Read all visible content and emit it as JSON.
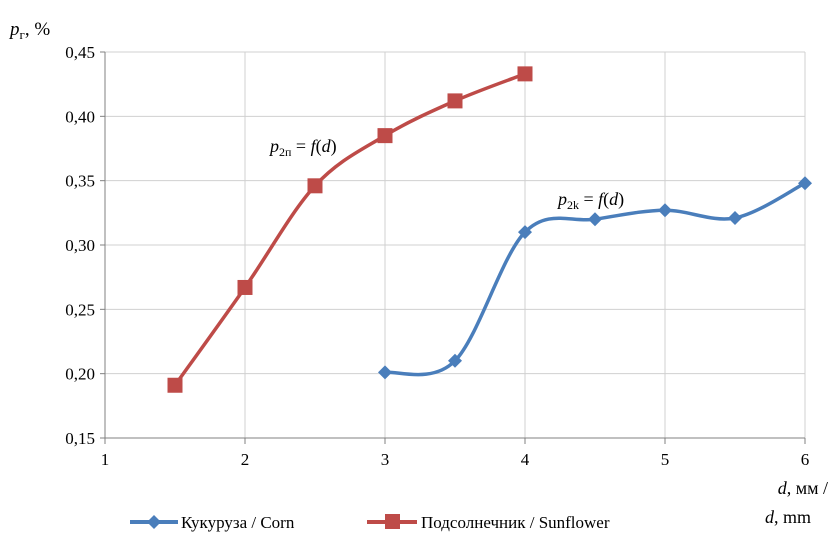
{
  "chart_data": {
    "type": "line",
    "ylabel": {
      "var": "p",
      "sub": "г",
      "rest": ", %"
    },
    "xlabel": {
      "line1_var": "d",
      "line1_rest": ", мм /",
      "line2_var": "d",
      "line2_rest": ", mm"
    },
    "xlim": [
      1,
      6
    ],
    "ylim": [
      0.15,
      0.45
    ],
    "x_ticks": [
      1,
      2,
      3,
      4,
      5,
      6
    ],
    "x_tick_labels": [
      "1",
      "2",
      "3",
      "4",
      "5",
      "6"
    ],
    "y_ticks": [
      0.15,
      0.2,
      0.25,
      0.3,
      0.35,
      0.4,
      0.45
    ],
    "y_tick_labels": [
      "0,15",
      "0,20",
      "0,25",
      "0,30",
      "0,35",
      "0,40",
      "0,45"
    ],
    "grid": true,
    "smooth": true,
    "legend_position": "bottom",
    "series": [
      {
        "name": "Кукуруза / Corn",
        "color": "#4a7ebb",
        "marker": "diamond",
        "x": [
          3,
          3.5,
          4,
          4.5,
          5,
          5.5,
          6
        ],
        "y": [
          0.201,
          0.21,
          0.31,
          0.32,
          0.327,
          0.321,
          0.348
        ]
      },
      {
        "name": "Подсолнечник / Sunflower",
        "color": "#be4b48",
        "marker": "square",
        "x": [
          1.5,
          2,
          2.5,
          3,
          3.5,
          4
        ],
        "y": [
          0.191,
          0.267,
          0.346,
          0.385,
          0.412,
          0.433
        ]
      }
    ],
    "annotations": [
      {
        "var": "p",
        "sub": "2п",
        "rest": " = ",
        "func": "f",
        "open": "(",
        "arg": "d",
        "close": ")"
      },
      {
        "var": "p",
        "sub": "2k",
        "rest": " = ",
        "func": "f",
        "open": "(",
        "arg": "d",
        "close": ")"
      }
    ]
  }
}
